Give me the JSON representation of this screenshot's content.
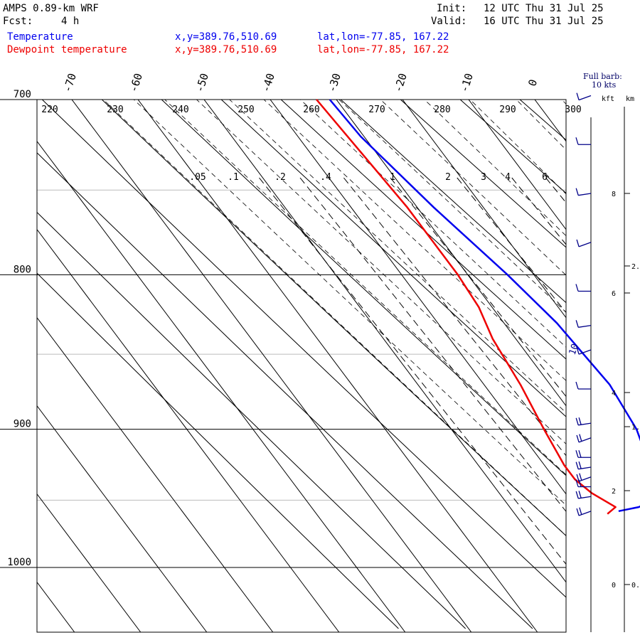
{
  "header": {
    "model": "AMPS 0.89-km WRF",
    "fcst_label": "Fcst:",
    "fcst_value": "4 h",
    "init_label": "Init:",
    "init_value": "12 UTC Thu 31 Jul 25",
    "valid_label": "Valid:",
    "valid_value": "16 UTC Thu 31 Jul 25"
  },
  "legend": {
    "temperature": {
      "name": "Temperature",
      "xy": "x,y=389.76,510.69",
      "latlon": "lat,lon=-77.85, 167.22",
      "color": "#0000ee"
    },
    "dewpoint": {
      "name": "Dewpoint temperature",
      "xy": "x,y=389.76,510.69",
      "latlon": "lat,lon=-77.85, 167.22",
      "color": "#ee0000"
    }
  },
  "barb_key": {
    "line1": "Full barb:",
    "line2": "10 kts"
  },
  "height_axis": {
    "kft_label": "kft",
    "km_label": "km"
  },
  "chart_data": {
    "type": "line",
    "diagram": "skew-T log-p",
    "pressure_levels": [
      700,
      800,
      900,
      1000
    ],
    "isotherm_labels": [
      "-70",
      "-60",
      "-50",
      "-40",
      "-30",
      "-20",
      "-10",
      "0"
    ],
    "isotherm_values": [
      -70,
      -60,
      -50,
      -40,
      -30,
      -20,
      -10,
      0
    ],
    "theta_labels": [
      "220",
      "230",
      "240",
      "250",
      "260",
      "270",
      "280",
      "290",
      "300"
    ],
    "mixing_ratio_labels": [
      ".05",
      ".1",
      ".2",
      ".4",
      "1",
      "2",
      "3",
      "4",
      "6"
    ],
    "series": [
      {
        "name": "Temperature",
        "color": "#0000ee",
        "p": [
          700,
          720,
          760,
          800,
          830,
          870,
          900,
          930,
          950,
          955,
          958
        ],
        "t": [
          -31,
          -30.5,
          -27.5,
          -24.0,
          -22.0,
          -21.0,
          -22.0,
          -24.5,
          -27.5,
          -30.5,
          -34.0
        ]
      },
      {
        "name": "Dewpoint temperature",
        "color": "#ee0000",
        "p": [
          700,
          760,
          800,
          820,
          840,
          870,
          900,
          925,
          935,
          945,
          955,
          960
        ],
        "t": [
          -33,
          -31.5,
          -31.5,
          -32.0,
          -33.5,
          -34.5,
          -36.0,
          -37.0,
          -37.0,
          -36.0,
          -34.0,
          -36.0
        ]
      }
    ],
    "wind_barbs": {
      "unit": "kts",
      "label": "10",
      "levels": [
        {
          "kft": 10.0,
          "speed": 10
        },
        {
          "kft": 9.0,
          "speed": 10
        },
        {
          "kft": 8.0,
          "speed": 10
        },
        {
          "kft": 7.0,
          "speed": 10
        },
        {
          "kft": 6.0,
          "speed": 10
        },
        {
          "kft": 5.3,
          "speed": 10
        },
        {
          "kft": 4.8,
          "speed": 10
        },
        {
          "kft": 4.0,
          "speed": 10
        },
        {
          "kft": 3.3,
          "speed": 20
        },
        {
          "kft": 3.0,
          "speed": 20
        },
        {
          "kft": 2.6,
          "speed": 20
        },
        {
          "kft": 2.4,
          "speed": 20
        },
        {
          "kft": 2.2,
          "speed": 20
        },
        {
          "kft": 2.0,
          "speed": 20
        },
        {
          "kft": 1.8,
          "speed": 20
        },
        {
          "kft": 1.5,
          "speed": 20
        }
      ]
    },
    "kft_ticks": [
      "8",
      "6",
      "4",
      "2",
      "0"
    ],
    "km_ticks": [
      "2.",
      "1.",
      "0."
    ]
  }
}
